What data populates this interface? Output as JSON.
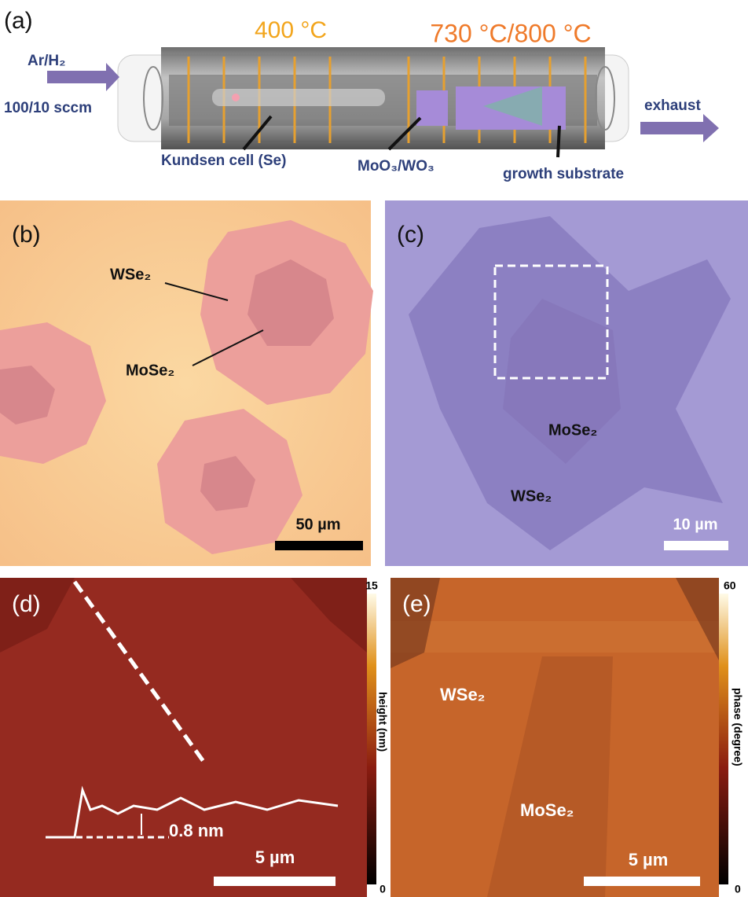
{
  "panels": {
    "a": {
      "label": "(a)",
      "temp_left": "400 °C",
      "temp_right": "730 °C/800 °C",
      "gas": "Ar/H₂",
      "flow": "100/10 sccm",
      "exhaust": "exhaust",
      "cell": "Kundsen cell (Se)",
      "precursor": "MoO₃/WO₃",
      "substrate": "growth substrate"
    },
    "b": {
      "label": "(b)",
      "wse2": "WSe₂",
      "mose2": "MoSe₂",
      "scale": "50 µm"
    },
    "c": {
      "label": "(c)",
      "mose2": "MoSe₂",
      "wse2": "WSe₂",
      "scale": "10 µm"
    },
    "d": {
      "label": "(d)",
      "step": "0.8 nm",
      "scale": "5 µm",
      "cbar_max": "15",
      "cbar_min": "0",
      "cbar_title": "height (nm)"
    },
    "e": {
      "label": "(e)",
      "wse2": "WSe₂",
      "mose2": "MoSe₂",
      "scale": "5 µm",
      "cbar_max": "60",
      "cbar_min": "0",
      "cbar_title": "phase (degree)"
    }
  }
}
